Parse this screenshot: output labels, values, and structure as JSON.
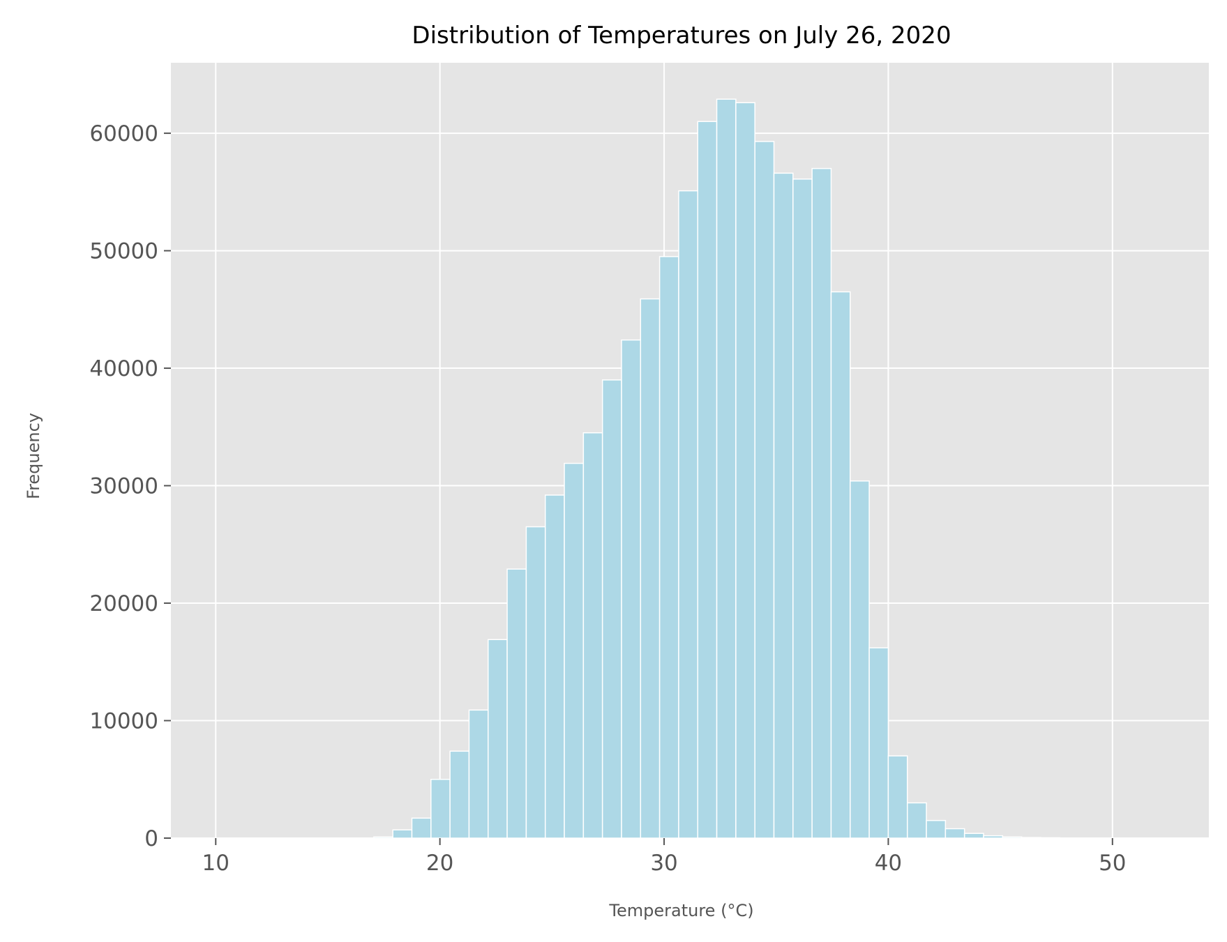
{
  "chart_data": {
    "type": "bar",
    "title": "Distribution of Temperatures on July 26, 2020",
    "xlabel": "Temperature (°C)",
    "ylabel": "Frequency",
    "xlim": [
      8,
      54.3
    ],
    "ylim": [
      0,
      66000
    ],
    "xticks": [
      10,
      20,
      30,
      40,
      50
    ],
    "yticks": [
      0,
      10000,
      20000,
      30000,
      40000,
      50000,
      60000
    ],
    "grid": true,
    "bin_width": 0.85,
    "bin_start": 17.05,
    "values": [
      100,
      700,
      1700,
      5000,
      7400,
      10900,
      16900,
      22900,
      26500,
      29200,
      31900,
      34500,
      39000,
      42400,
      45900,
      49500,
      55100,
      61000,
      62900,
      62600,
      59300,
      56600,
      56100,
      57000,
      46500,
      30400,
      16200,
      7000,
      3000,
      1500,
      800,
      400,
      200,
      100,
      50,
      30
    ],
    "colors": {
      "bar_fill": "#add8e6",
      "bar_edge": "#ffffff",
      "plot_bg": "#e5e5e5",
      "grid": "#ffffff",
      "tick_text": "#555555",
      "title_text": "#000000"
    }
  }
}
